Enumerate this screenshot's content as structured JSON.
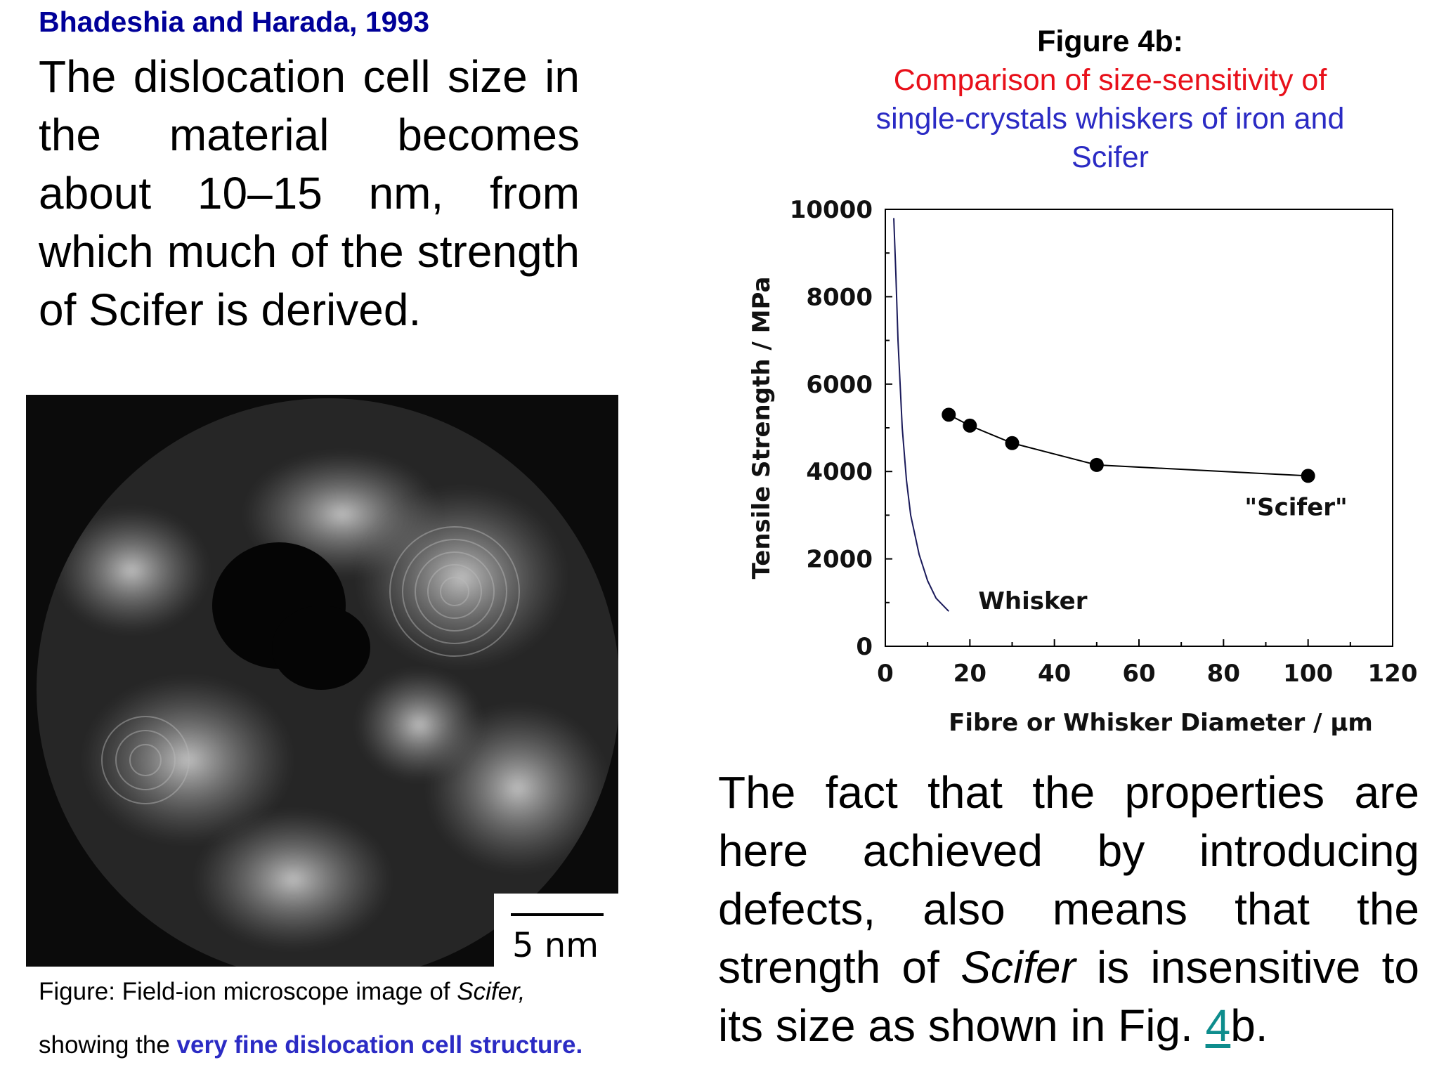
{
  "reference": "Bhadeshia and Harada, 1993",
  "left_paragraph": "The dislocation cell size in the material becomes about 10–15 nm, from which much of the strength of Scifer is derived.",
  "figure_title": {
    "line1": "Figure 4b:",
    "line2": "Comparison of size-sensitivity of",
    "line3": "single-crystals whiskers of iron and",
    "line4": "Scifer"
  },
  "micrograph": {
    "scale_bar_label": "5 nm"
  },
  "caption": {
    "part1": "Figure:  Field-ion microscope image of ",
    "part1_italic": "Scifer,",
    "part2": "showing the ",
    "highlight": "very fine dislocation cell structure",
    "end": "."
  },
  "right_paragraph": {
    "part1": "The fact that the properties are here achieved by introducing defects, also means that the strength of ",
    "italic": "Scifer",
    "part2": " is insensitive to its size as shown in Fig. ",
    "link": "4",
    "part3": "b."
  },
  "chart_data": {
    "type": "scatter",
    "title": "",
    "xlabel": "Fibre  or Whisker Diameter / µm",
    "ylabel": "Tensile Strength / MPa",
    "xlim": [
      0,
      120
    ],
    "ylim": [
      0,
      10000
    ],
    "x_ticks": [
      "0",
      "20",
      "40",
      "60",
      "80",
      "100",
      "120"
    ],
    "y_ticks": [
      "0",
      "2000",
      "4000",
      "6000",
      "8000",
      "10000"
    ],
    "series": [
      {
        "name": "\"Scifer\"",
        "style": "line-with-markers",
        "x": [
          15,
          20,
          30,
          50,
          100
        ],
        "y": [
          5300,
          5050,
          4650,
          4150,
          3900
        ]
      },
      {
        "name": "Whisker",
        "style": "line",
        "x": [
          2,
          2.5,
          3,
          4,
          5,
          6,
          8,
          10,
          12,
          15
        ],
        "y": [
          9800,
          8500,
          7000,
          5000,
          3800,
          3000,
          2100,
          1500,
          1100,
          800
        ]
      }
    ],
    "grid": false
  }
}
